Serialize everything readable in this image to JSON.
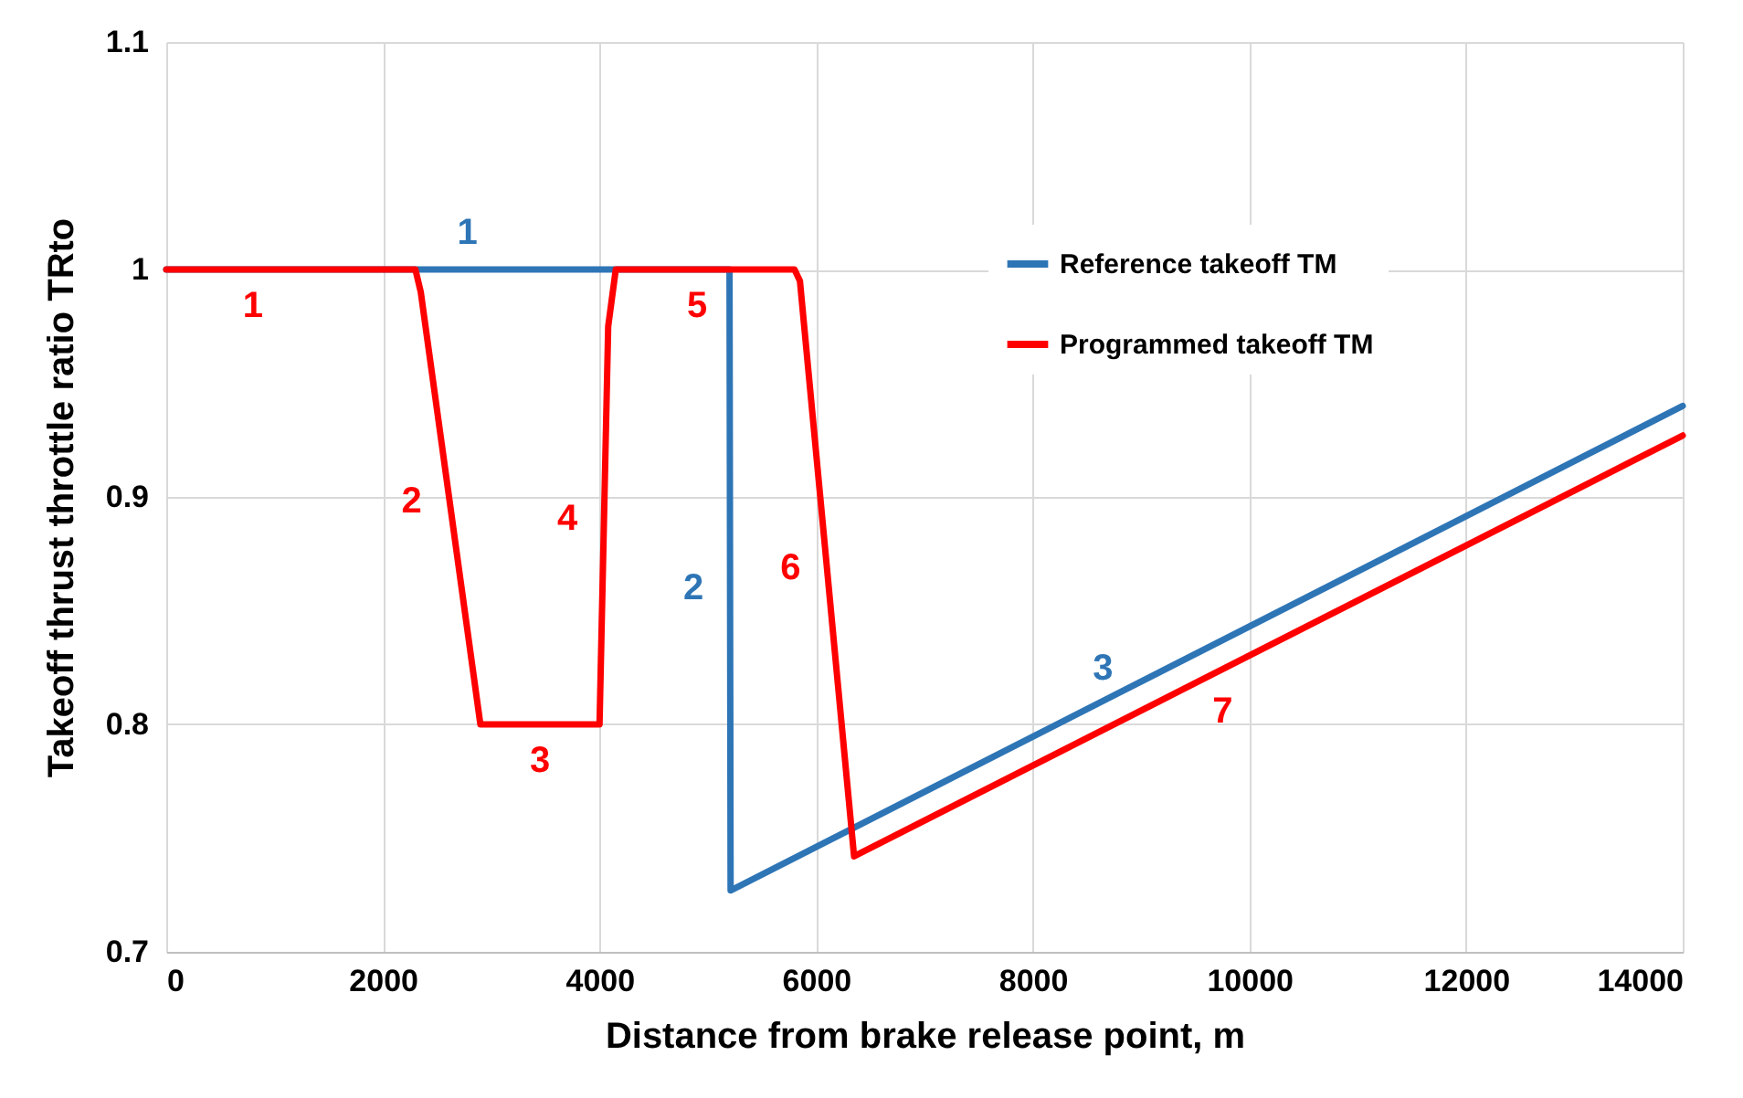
{
  "chart_data": {
    "type": "line",
    "xlabel": "Distance from brake release point, m",
    "ylabel": "Takeoff thrust throttle ratio TRto",
    "xlim": [
      0,
      14000
    ],
    "xticks": [
      0,
      2000,
      4000,
      6000,
      8000,
      10000,
      12000,
      14000
    ],
    "ylim": [
      0.7,
      1.1
    ],
    "yticks": [
      0.7,
      0.8,
      0.9,
      1,
      1.1
    ],
    "grid": true,
    "legend": "top right",
    "series": [
      {
        "name": "Reference takeoff TM",
        "color": "#2e75b6",
        "x": [
          0,
          5200,
          5210,
          14000
        ],
        "values": [
          1,
          1,
          0.727,
          0.94
        ]
      },
      {
        "name": "Programmed takeoff TM",
        "color": "#ff0000",
        "x": [
          0,
          2300,
          2350,
          2900,
          4000,
          4080,
          4150,
          5800,
          5850,
          6350,
          14000
        ],
        "values": [
          1,
          1,
          0.99,
          0.8,
          0.8,
          0.975,
          1,
          1,
          0.995,
          0.742,
          0.927
        ]
      }
    ],
    "annotations": [
      {
        "text": "1",
        "x": 800,
        "y": 1
      },
      {
        "text": "1",
        "x": 2780,
        "y": 1
      },
      {
        "text": "5",
        "x": 4900,
        "y": 1
      },
      {
        "text": "2",
        "x": 2600,
        "y": 0.9
      },
      {
        "text": "3",
        "x": 3450,
        "y": 0.8
      },
      {
        "text": "4",
        "x": 4040,
        "y": 0.89
      },
      {
        "text": "2",
        "x": 5205,
        "y": 0.86
      },
      {
        "text": "6",
        "x": 6100,
        "y": 0.87
      },
      {
        "text": "3",
        "x": 8800,
        "y": 0.81
      },
      {
        "text": "7",
        "x": 9600,
        "y": 0.82
      }
    ]
  }
}
